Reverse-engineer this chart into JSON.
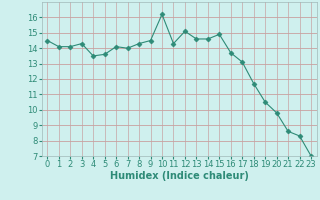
{
  "x": [
    0,
    1,
    2,
    3,
    4,
    5,
    6,
    7,
    8,
    9,
    10,
    11,
    12,
    13,
    14,
    15,
    16,
    17,
    18,
    19,
    20,
    21,
    22,
    23
  ],
  "y": [
    14.5,
    14.1,
    14.1,
    14.3,
    13.5,
    13.6,
    14.1,
    14.0,
    14.3,
    14.5,
    16.2,
    14.3,
    15.1,
    14.6,
    14.6,
    14.9,
    13.7,
    13.1,
    11.7,
    10.5,
    9.8,
    8.6,
    8.3,
    7.0
  ],
  "line_color": "#2e8b77",
  "marker": "D",
  "marker_size": 2.5,
  "bg_color": "#cff0ee",
  "grid_color_h": "#c8a8a8",
  "grid_color_v": "#c8b8b8",
  "xlabel": "Humidex (Indice chaleur)",
  "ylim": [
    7,
    17
  ],
  "xlim": [
    -0.5,
    23.5
  ],
  "yticks": [
    7,
    8,
    9,
    10,
    11,
    12,
    13,
    14,
    15,
    16
  ],
  "xticks": [
    0,
    1,
    2,
    3,
    4,
    5,
    6,
    7,
    8,
    9,
    10,
    11,
    12,
    13,
    14,
    15,
    16,
    17,
    18,
    19,
    20,
    21,
    22,
    23
  ],
  "label_fontsize": 7,
  "tick_fontsize": 6,
  "tick_color": "#2e8b77",
  "xlabel_color": "#2e8b77"
}
